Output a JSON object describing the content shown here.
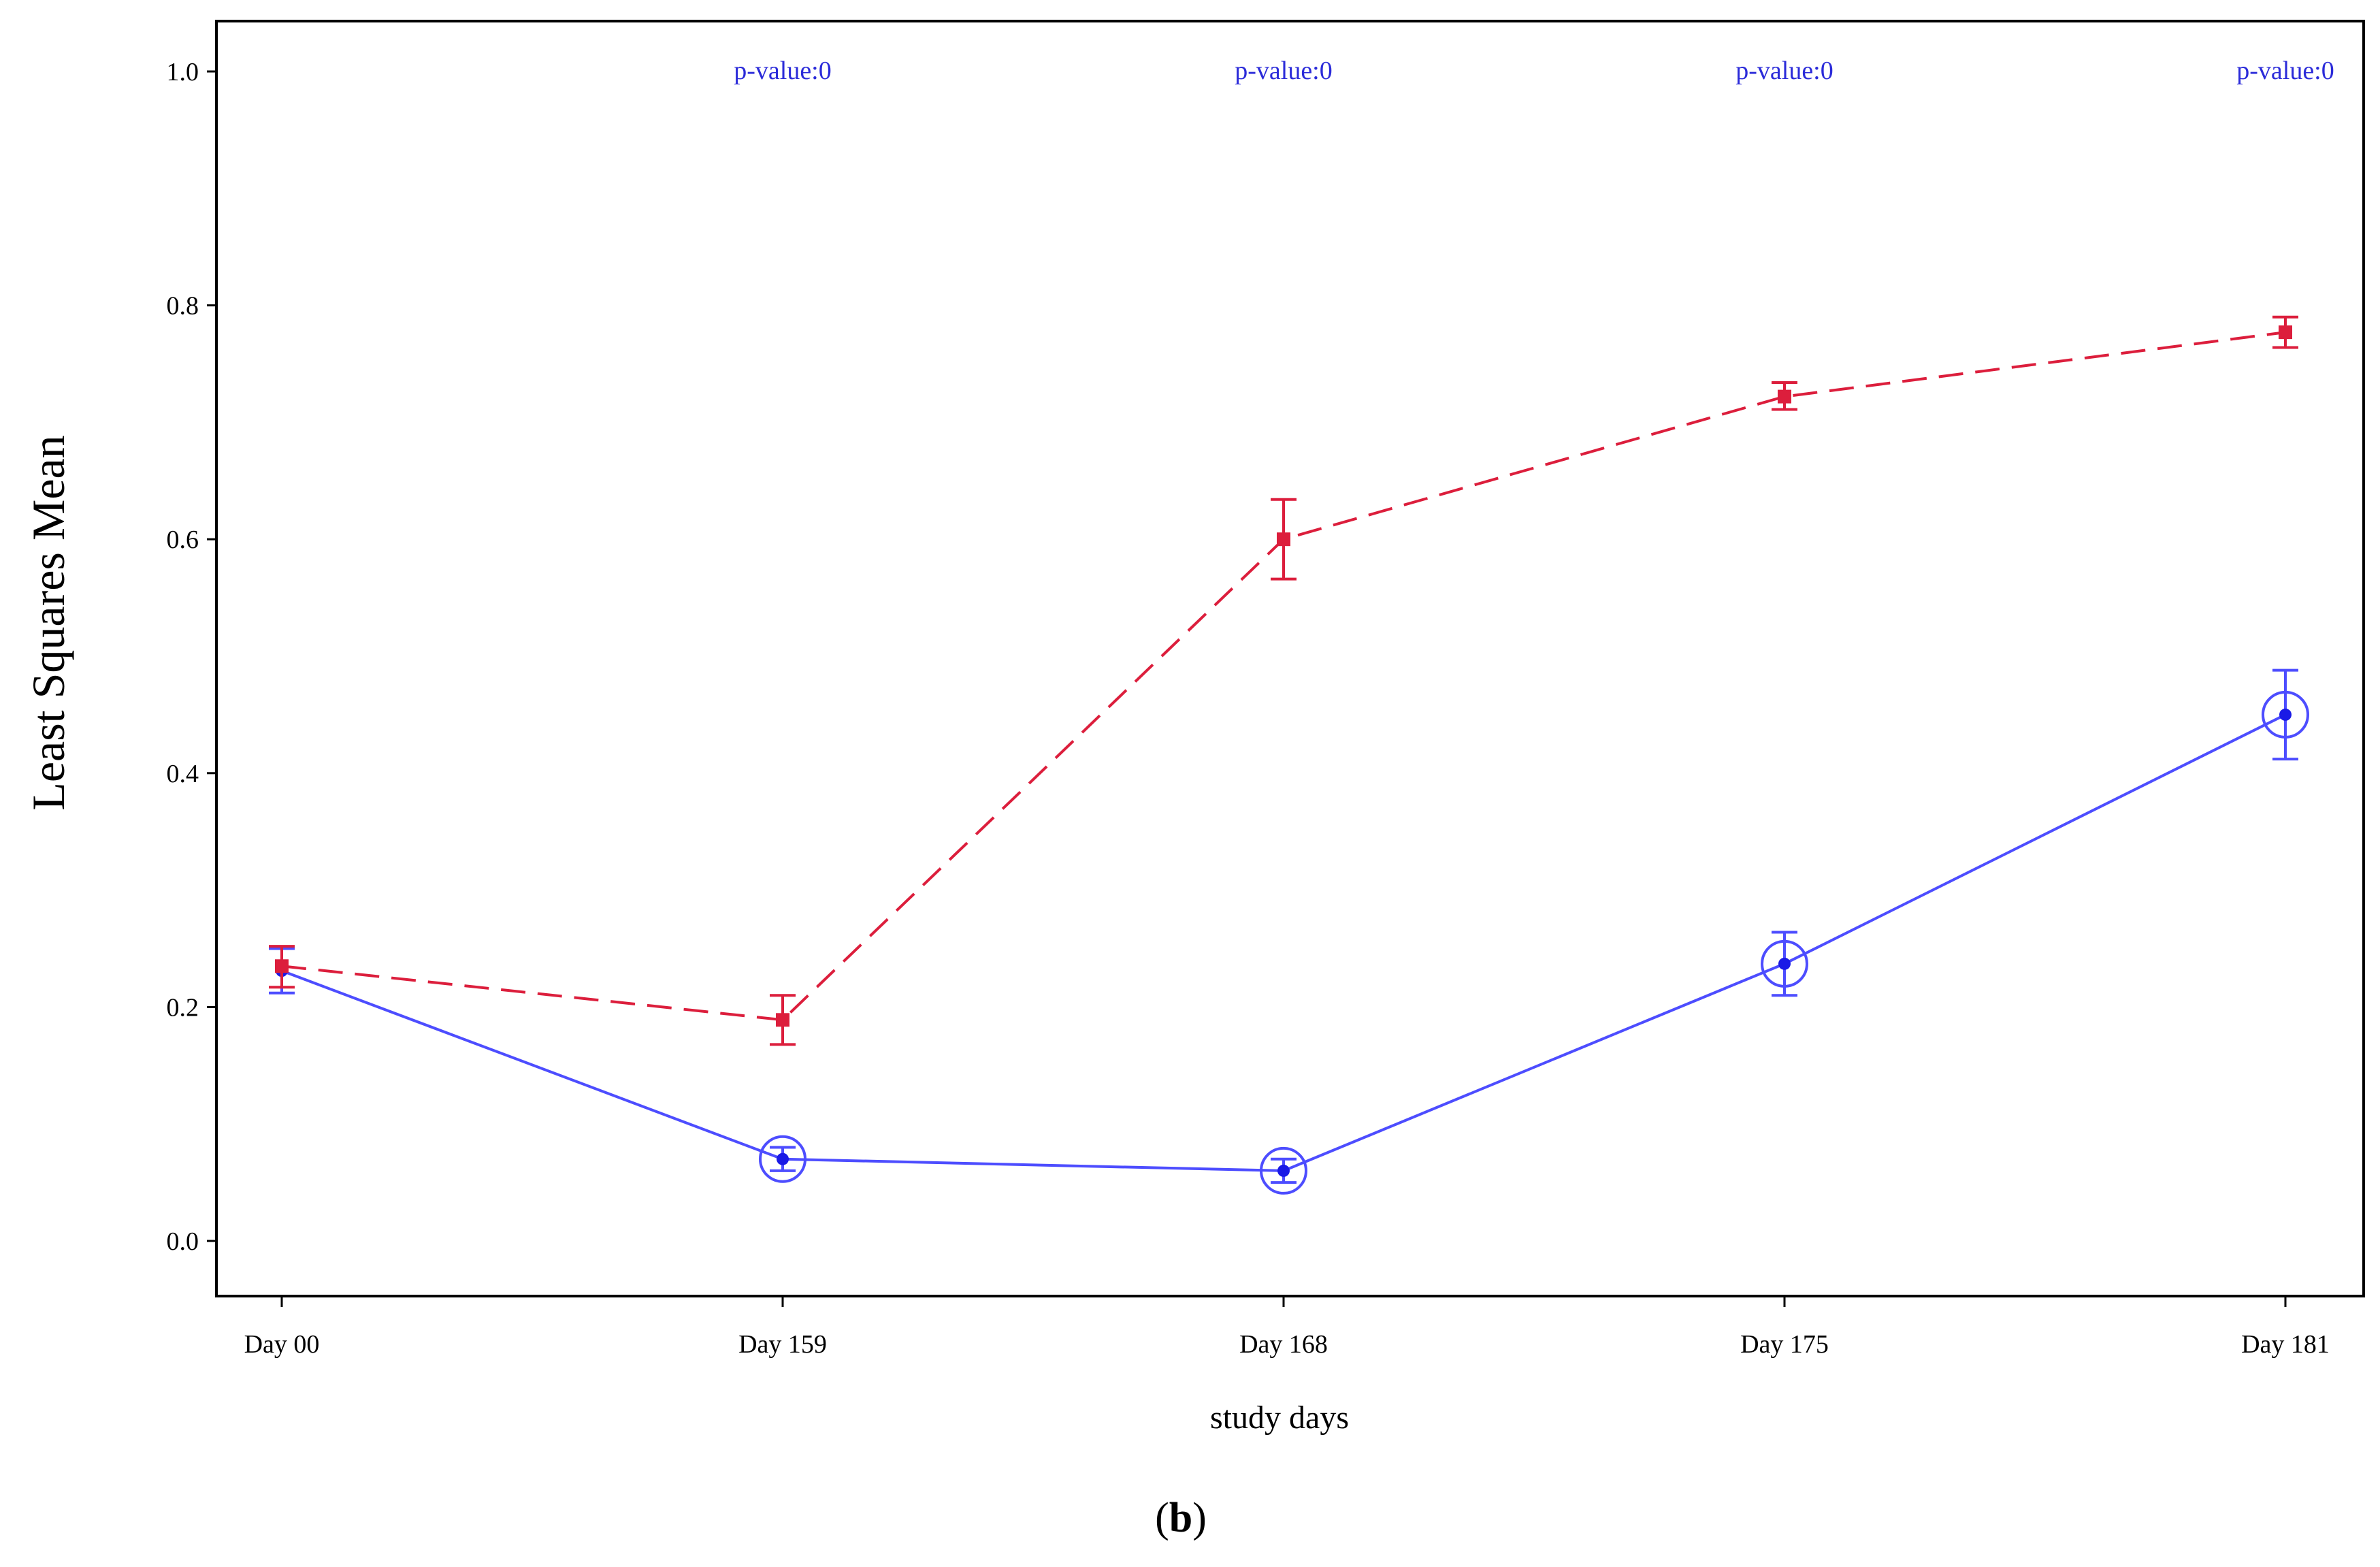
{
  "chart_data": {
    "type": "line",
    "xlabel": "study days",
    "ylabel": "Least Squares Mean",
    "ylim": [
      0.0,
      1.0
    ],
    "yticks": [
      "0.0",
      "0.2",
      "0.4",
      "0.6",
      "0.8",
      "1.0"
    ],
    "categories": [
      "Day 00",
      "Day 159",
      "Day 168",
      "Day 175",
      "Day 181"
    ],
    "annotations": [
      {
        "category": "Day 159",
        "text": "p-value:0"
      },
      {
        "category": "Day 168",
        "text": "p-value:0"
      },
      {
        "category": "Day 175",
        "text": "p-value:0"
      },
      {
        "category": "Day 181",
        "text": "p-value:0"
      }
    ],
    "series": [
      {
        "name": "red-dashed",
        "color": "#dc1e3c",
        "line_style": "dashed",
        "marker": "square",
        "values": [
          0.235,
          0.189,
          0.6,
          0.722,
          0.777
        ],
        "lower": [
          0.217,
          0.168,
          0.566,
          0.711,
          0.764
        ],
        "upper": [
          0.252,
          0.21,
          0.634,
          0.734,
          0.79
        ]
      },
      {
        "name": "blue-solid",
        "color": "#4d4dff",
        "line_style": "solid",
        "marker": "dot-in-circle",
        "values": [
          0.231,
          0.07,
          0.06,
          0.237,
          0.45
        ],
        "lower": [
          0.212,
          0.06,
          0.05,
          0.21,
          0.412
        ],
        "upper": [
          0.25,
          0.08,
          0.07,
          0.264,
          0.488
        ],
        "circled": [
          false,
          true,
          true,
          true,
          true
        ]
      }
    ],
    "annotation_color": "#2b2bd9"
  },
  "panel_label": {
    "open": "(",
    "letter": "b",
    "close": ")"
  }
}
